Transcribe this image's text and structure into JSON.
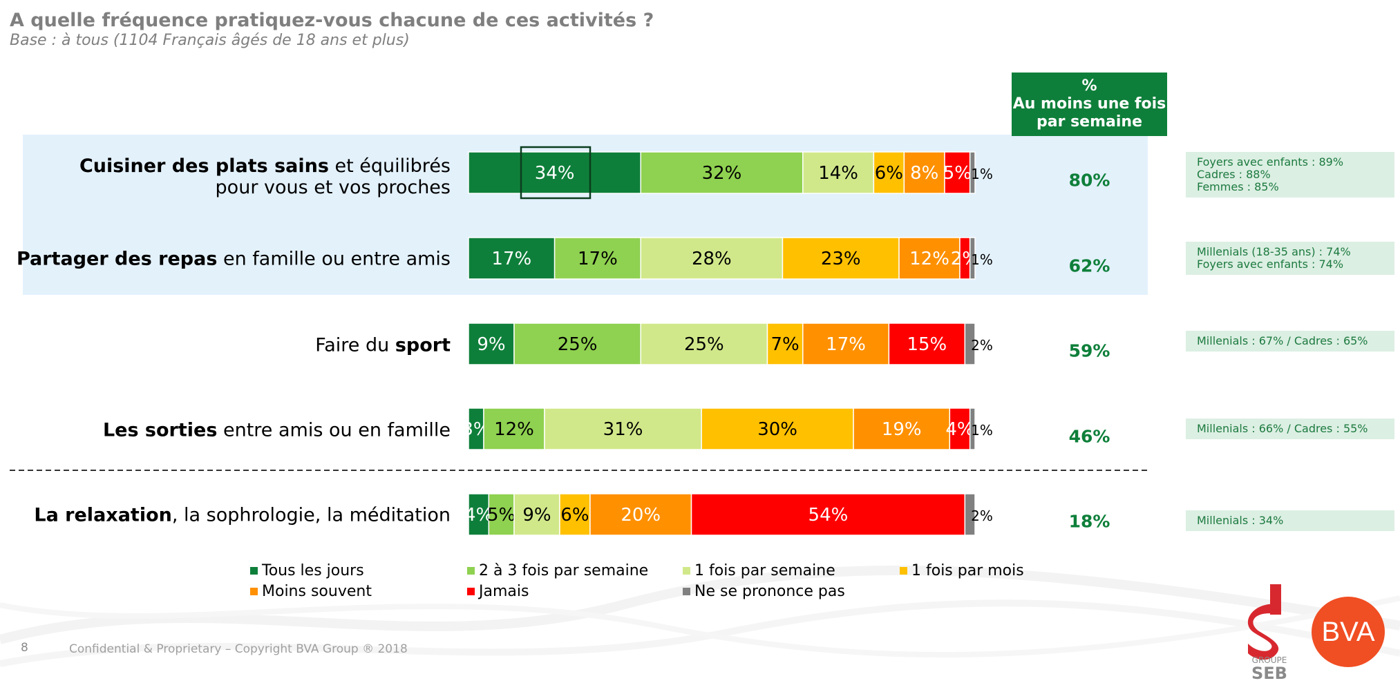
{
  "title": "A quelle fréquence pratiquez-vous chacune de ces activités ?",
  "subtitle": "Base : à tous (1104 Français âgés de 18 ans et plus)",
  "summary_header": [
    "%",
    "Au moins une fois",
    "par semaine"
  ],
  "rows": [
    {
      "label_parts": [
        {
          "text": "Cuisiner des plats sains",
          "bold": true
        },
        {
          "text": " et équilibrés",
          "bold": false
        }
      ],
      "label_line2": "pour vous et vos proches",
      "summary": "80%",
      "subgroups": [
        "Foyers avec enfants : 89%",
        "Cadres : 88%",
        "Femmes : 85%"
      ]
    },
    {
      "label_parts": [
        {
          "text": "Partager des repas",
          "bold": true
        },
        {
          "text": " en famille ou entre amis",
          "bold": false
        }
      ],
      "label_line2": "",
      "summary": "62%",
      "subgroups": [
        "Millenials (18-35 ans) : 74%",
        "Foyers avec enfants : 74%"
      ]
    },
    {
      "label_parts": [
        {
          "text": "Faire du ",
          "bold": false
        },
        {
          "text": "sport",
          "bold": true
        }
      ],
      "label_line2": "",
      "summary": "59%",
      "subgroups": [
        "Millenials : 67% / Cadres : 65%"
      ]
    },
    {
      "label_parts": [
        {
          "text": "Les sorties",
          "bold": true
        },
        {
          "text": " entre amis ou en famille",
          "bold": false
        }
      ],
      "label_line2": "",
      "summary": "46%",
      "subgroups": [
        "Millenials : 66% / Cadres : 55%"
      ]
    },
    {
      "label_parts": [
        {
          "text": "La relaxation",
          "bold": true
        },
        {
          "text": ", la sophrologie, la méditation",
          "bold": false
        }
      ],
      "label_line2": "",
      "summary": "18%",
      "subgroups": [
        "Millenials : 34%"
      ]
    }
  ],
  "chart_data": {
    "type": "bar",
    "orientation": "horizontal",
    "stacked": true,
    "categories": [
      "Cuisiner des plats sains et équilibrés pour vous et vos proches",
      "Partager des repas en famille ou entre amis",
      "Faire du sport",
      "Les sorties entre amis ou en famille",
      "La relaxation, la sophrologie, la méditation"
    ],
    "series": [
      {
        "name": "Tous les jours",
        "color": "#0e7f3a",
        "label_color": "#ffffff",
        "values": [
          34,
          17,
          9,
          3,
          4
        ]
      },
      {
        "name": "2 à 3 fois par semaine",
        "color": "#8fd150",
        "label_color": "#000000",
        "values": [
          32,
          17,
          25,
          12,
          5
        ]
      },
      {
        "name": "1 fois par semaine",
        "color": "#d1e88a",
        "label_color": "#000000",
        "values": [
          14,
          28,
          25,
          31,
          9
        ]
      },
      {
        "name": "1 fois par mois",
        "color": "#ffc000",
        "label_color": "#000000",
        "values": [
          6,
          23,
          7,
          30,
          6
        ]
      },
      {
        "name": "Moins souvent",
        "color": "#ff9000",
        "label_color": "#ffffff",
        "values": [
          8,
          12,
          17,
          19,
          20
        ]
      },
      {
        "name": "Jamais",
        "color": "#ff0000",
        "label_color": "#ffffff",
        "values": [
          5,
          2,
          15,
          4,
          54
        ]
      },
      {
        "name": "Ne se prononce pas",
        "color": "#808080",
        "label_color": "#000000",
        "values": [
          1,
          1,
          2,
          1,
          2
        ]
      }
    ],
    "highlighted_segment": {
      "row": 0,
      "series": 0
    },
    "legend_position": "bottom",
    "xlim": [
      0,
      100
    ],
    "grid": false
  },
  "footer": {
    "page_number": "8",
    "copyright": "Confidential & Proprietary – Copyright BVA Group ® 2018"
  },
  "logos": {
    "seb_caption": [
      "GROUPE",
      "SEB"
    ],
    "bva_text": "BVA",
    "seb_color": "#d8282f",
    "bva_color": "#f04e23"
  }
}
